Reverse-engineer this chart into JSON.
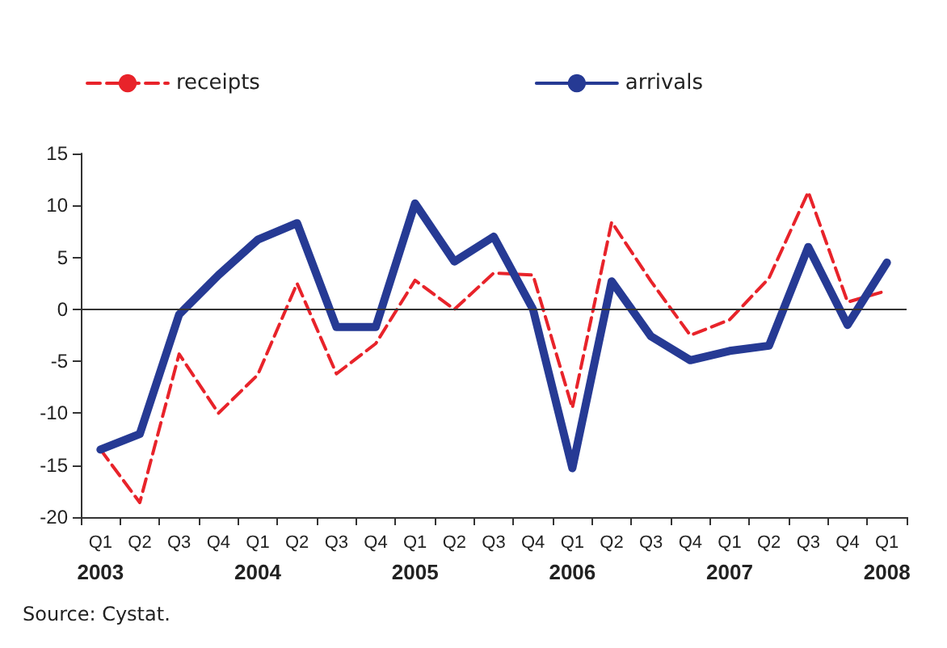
{
  "chart_data": {
    "type": "line",
    "categories": [
      "Q1\n2003",
      "Q2",
      "Q3",
      "Q4",
      "Q1\n2004",
      "Q2",
      "Q3",
      "Q4",
      "Q1\n2005",
      "Q2",
      "Q3",
      "Q4",
      "Q1\n2006",
      "Q2",
      "Q3",
      "Q4",
      "Q1\n2007",
      "Q2",
      "Q3",
      "Q4",
      "Q1\n2008"
    ],
    "series": [
      {
        "name": "receipts",
        "color": "#e8232a",
        "line_style": "dashed",
        "values": [
          -13.5,
          -18.6,
          -4.3,
          -10,
          -6.3,
          2.5,
          -6.2,
          -3.3,
          2.8,
          0,
          3.5,
          3.3,
          -9.5,
          8.4,
          2.7,
          -2.5,
          -1,
          3,
          11.3,
          0.7,
          1.8
        ]
      },
      {
        "name": "arrivals",
        "color": "#263a94",
        "line_style": "solid",
        "values": [
          -13.5,
          -12,
          -0.5,
          3.3,
          6.7,
          8.3,
          -1.7,
          -1.7,
          10.2,
          4.6,
          7,
          0,
          -15.3,
          2.7,
          -2.6,
          -4.9,
          -4,
          -3.5,
          6,
          -1.5,
          4.5
        ]
      }
    ],
    "ylim": [
      -20,
      15
    ],
    "yticks": [
      -20,
      -15,
      -10,
      -5,
      0,
      5,
      10,
      15
    ],
    "ref_lines": [
      {
        "axis": "y",
        "value": 0,
        "color": "#333333",
        "line_style": "solid"
      }
    ],
    "grid": false,
    "legend": "top left",
    "marker": "none",
    "annotations": [
      "Source: Cystat."
    ]
  }
}
